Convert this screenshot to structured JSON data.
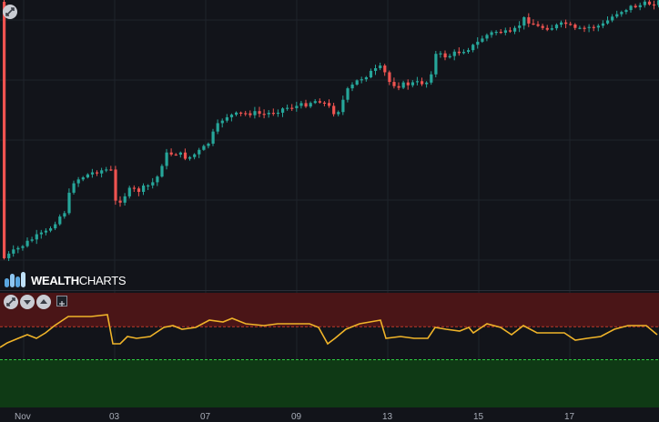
{
  "app": {
    "logo_text_bold": "WEALTH",
    "logo_text_light": "CHARTS"
  },
  "icons": {
    "collapse_main": "collapse-arrows-icon",
    "collapse_indicator": "collapse-arrows-icon",
    "move_down": "chevron-down-icon",
    "move_up": "chevron-up-icon",
    "add_indicator": "plus-icon"
  },
  "colors": {
    "background": "#12141a",
    "up_candle": "#26a69a",
    "down_candle": "#ef5350",
    "indicator_line": "#f0b429",
    "overbought_zone": "#4a1517",
    "oversold_zone": "#0f3a15",
    "grid": "#1f232b"
  },
  "chart_data": [
    {
      "type": "candlestick",
      "x_tick_labels": [
        "Nov",
        "03",
        "07",
        "09",
        "13",
        "15",
        "17"
      ]
    },
    {
      "type": "line",
      "overbought_level": 70,
      "oversold_level": 30
    }
  ]
}
